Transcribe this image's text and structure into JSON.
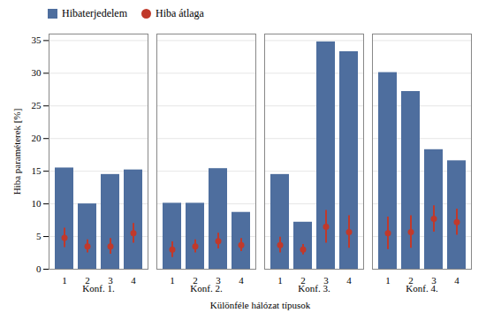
{
  "chart_data": {
    "type": "bar",
    "xlabel": "Különféle hálózat típusok",
    "ylabel": "Hiba paraméterek [%]",
    "categories": [
      "1",
      "2",
      "3",
      "4",
      "1",
      "2",
      "3",
      "4",
      "1",
      "2",
      "3",
      "4",
      "1",
      "2",
      "3",
      "4"
    ],
    "groups": [
      "Konf. 1.",
      "Konf. 2.",
      "Konf. 3.",
      "Konf. 4."
    ],
    "series": [
      {
        "name": "Hibaterjedelem",
        "type": "bar",
        "color": "#4E6E9E",
        "values": [
          15.5,
          10.0,
          14.5,
          15.2,
          10.1,
          10.1,
          15.4,
          8.7,
          14.5,
          7.2,
          34.8,
          33.3,
          30.1,
          27.2,
          18.3,
          16.6
        ]
      },
      {
        "name": "Hiba átlaga",
        "type": "scatter",
        "color": "#C0392B",
        "values": [
          4.8,
          3.5,
          3.5,
          5.5,
          3.0,
          3.5,
          4.3,
          3.7,
          3.7,
          3.0,
          6.5,
          5.7,
          5.5,
          5.7,
          7.7,
          7.2
        ],
        "errors": [
          1.5,
          1.0,
          1.2,
          1.5,
          1.2,
          1.0,
          1.2,
          1.0,
          1.2,
          0.8,
          2.5,
          2.5,
          2.5,
          2.5,
          2.0,
          2.0
        ]
      }
    ],
    "ylim": [
      0,
      36
    ],
    "yticks": [
      0,
      5,
      10,
      15,
      20,
      25,
      30,
      35
    ],
    "grid": true,
    "legend": "upper left"
  }
}
